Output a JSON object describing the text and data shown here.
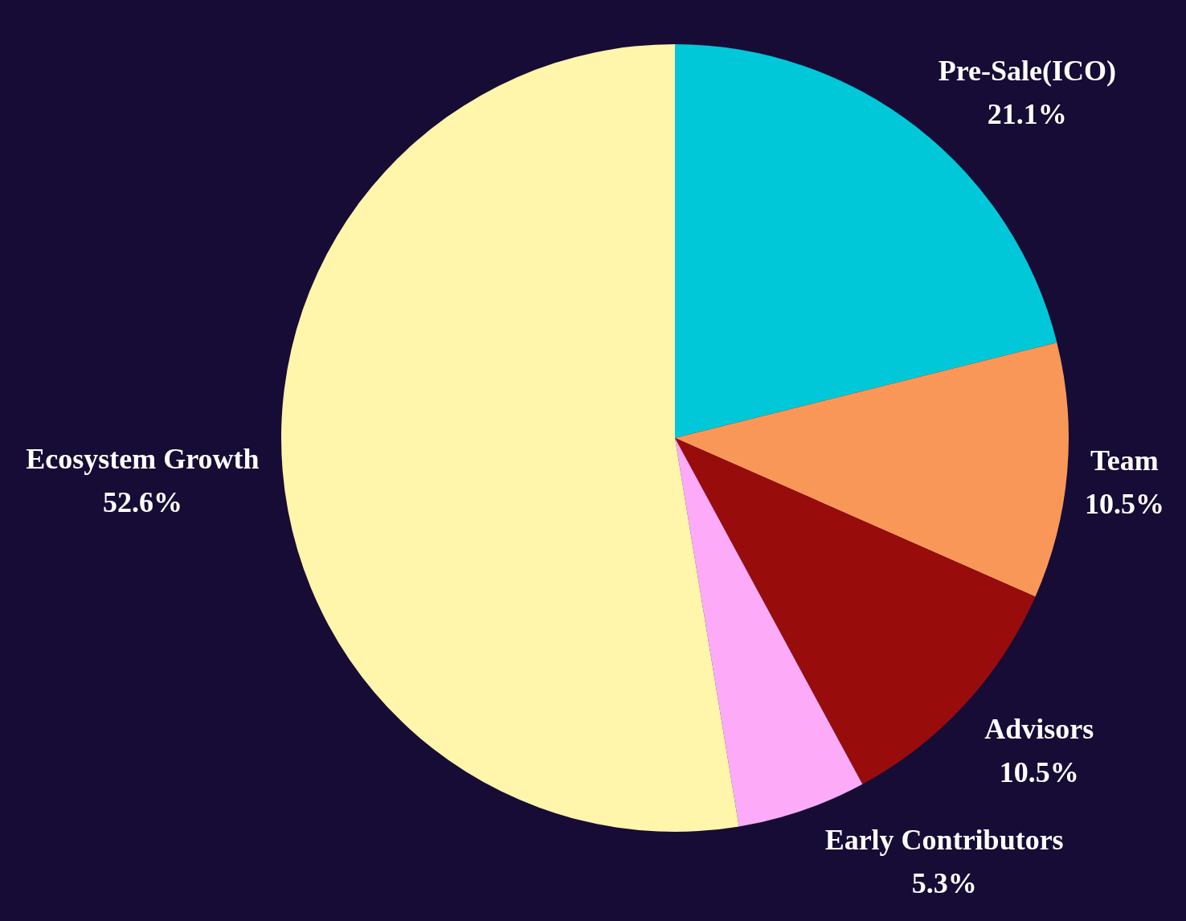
{
  "chart_data": {
    "type": "pie",
    "categories": [
      "Pre-Sale(ICO)",
      "Team",
      "Advisors",
      "Early Contributors",
      "Ecosystem Growth"
    ],
    "values": [
      21.1,
      10.5,
      10.5,
      5.3,
      52.6
    ],
    "colors": [
      "#00c8d9",
      "#f99758",
      "#990c0c",
      "#fdabf9",
      "#fff5ab"
    ],
    "value_labels": [
      "21.1%",
      "10.5%",
      "10.5%",
      "5.3%",
      "52.6%"
    ]
  }
}
